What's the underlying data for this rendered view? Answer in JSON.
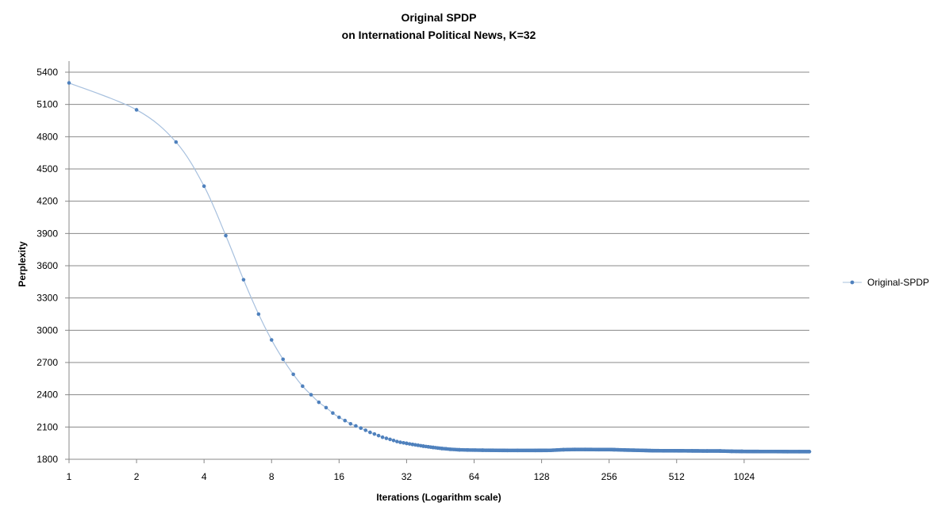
{
  "chart_data": {
    "type": "line",
    "title": "Original SPDP",
    "subtitle": "on International Political News, K=32",
    "xlabel": "Iterations (Logarithm scale)",
    "ylabel": "Perplexity",
    "x_scale": "log2",
    "xlim": [
      1,
      2000
    ],
    "ylim": [
      1800,
      5400
    ],
    "y_ticks": [
      1800,
      2100,
      2400,
      2700,
      3000,
      3300,
      3600,
      3900,
      4200,
      4500,
      4800,
      5100,
      5400
    ],
    "x_ticks": [
      1,
      2,
      4,
      8,
      16,
      32,
      64,
      128,
      256,
      512,
      1024
    ],
    "grid": "horizontal",
    "legend_position": "right",
    "colors": {
      "series": "#4f81bd",
      "line": "#a7c0de",
      "grid": "#888888",
      "axis": "#888888"
    },
    "series": [
      {
        "name": "Original-SPDP",
        "x": [
          1,
          2,
          3,
          4,
          5,
          6,
          7,
          8,
          9,
          10,
          11,
          12,
          13,
          14,
          15,
          16,
          17,
          18,
          19,
          20,
          21,
          22,
          23,
          24,
          25,
          26,
          27,
          28,
          29,
          30,
          32,
          34,
          36,
          38,
          40,
          42,
          44,
          46,
          48,
          50,
          55,
          60,
          70,
          80,
          90,
          100,
          120,
          140,
          160,
          180,
          200,
          230,
          260,
          300,
          350,
          400,
          450,
          500,
          600,
          700,
          800,
          900,
          1000,
          1200,
          1400,
          1600,
          1800,
          2000
        ],
        "y": [
          5300,
          5050,
          4750,
          4340,
          3880,
          3470,
          3150,
          2910,
          2730,
          2590,
          2480,
          2400,
          2330,
          2280,
          2230,
          2190,
          2160,
          2130,
          2110,
          2090,
          2070,
          2050,
          2035,
          2020,
          2005,
          1995,
          1985,
          1975,
          1965,
          1958,
          1948,
          1938,
          1930,
          1922,
          1916,
          1910,
          1905,
          1900,
          1897,
          1893,
          1888,
          1886,
          1884,
          1883,
          1882,
          1882,
          1882,
          1883,
          1889,
          1891,
          1891,
          1890,
          1890,
          1886,
          1883,
          1880,
          1879,
          1879,
          1878,
          1877,
          1877,
          1874,
          1873,
          1872,
          1872,
          1871,
          1871,
          1871
        ]
      }
    ]
  }
}
